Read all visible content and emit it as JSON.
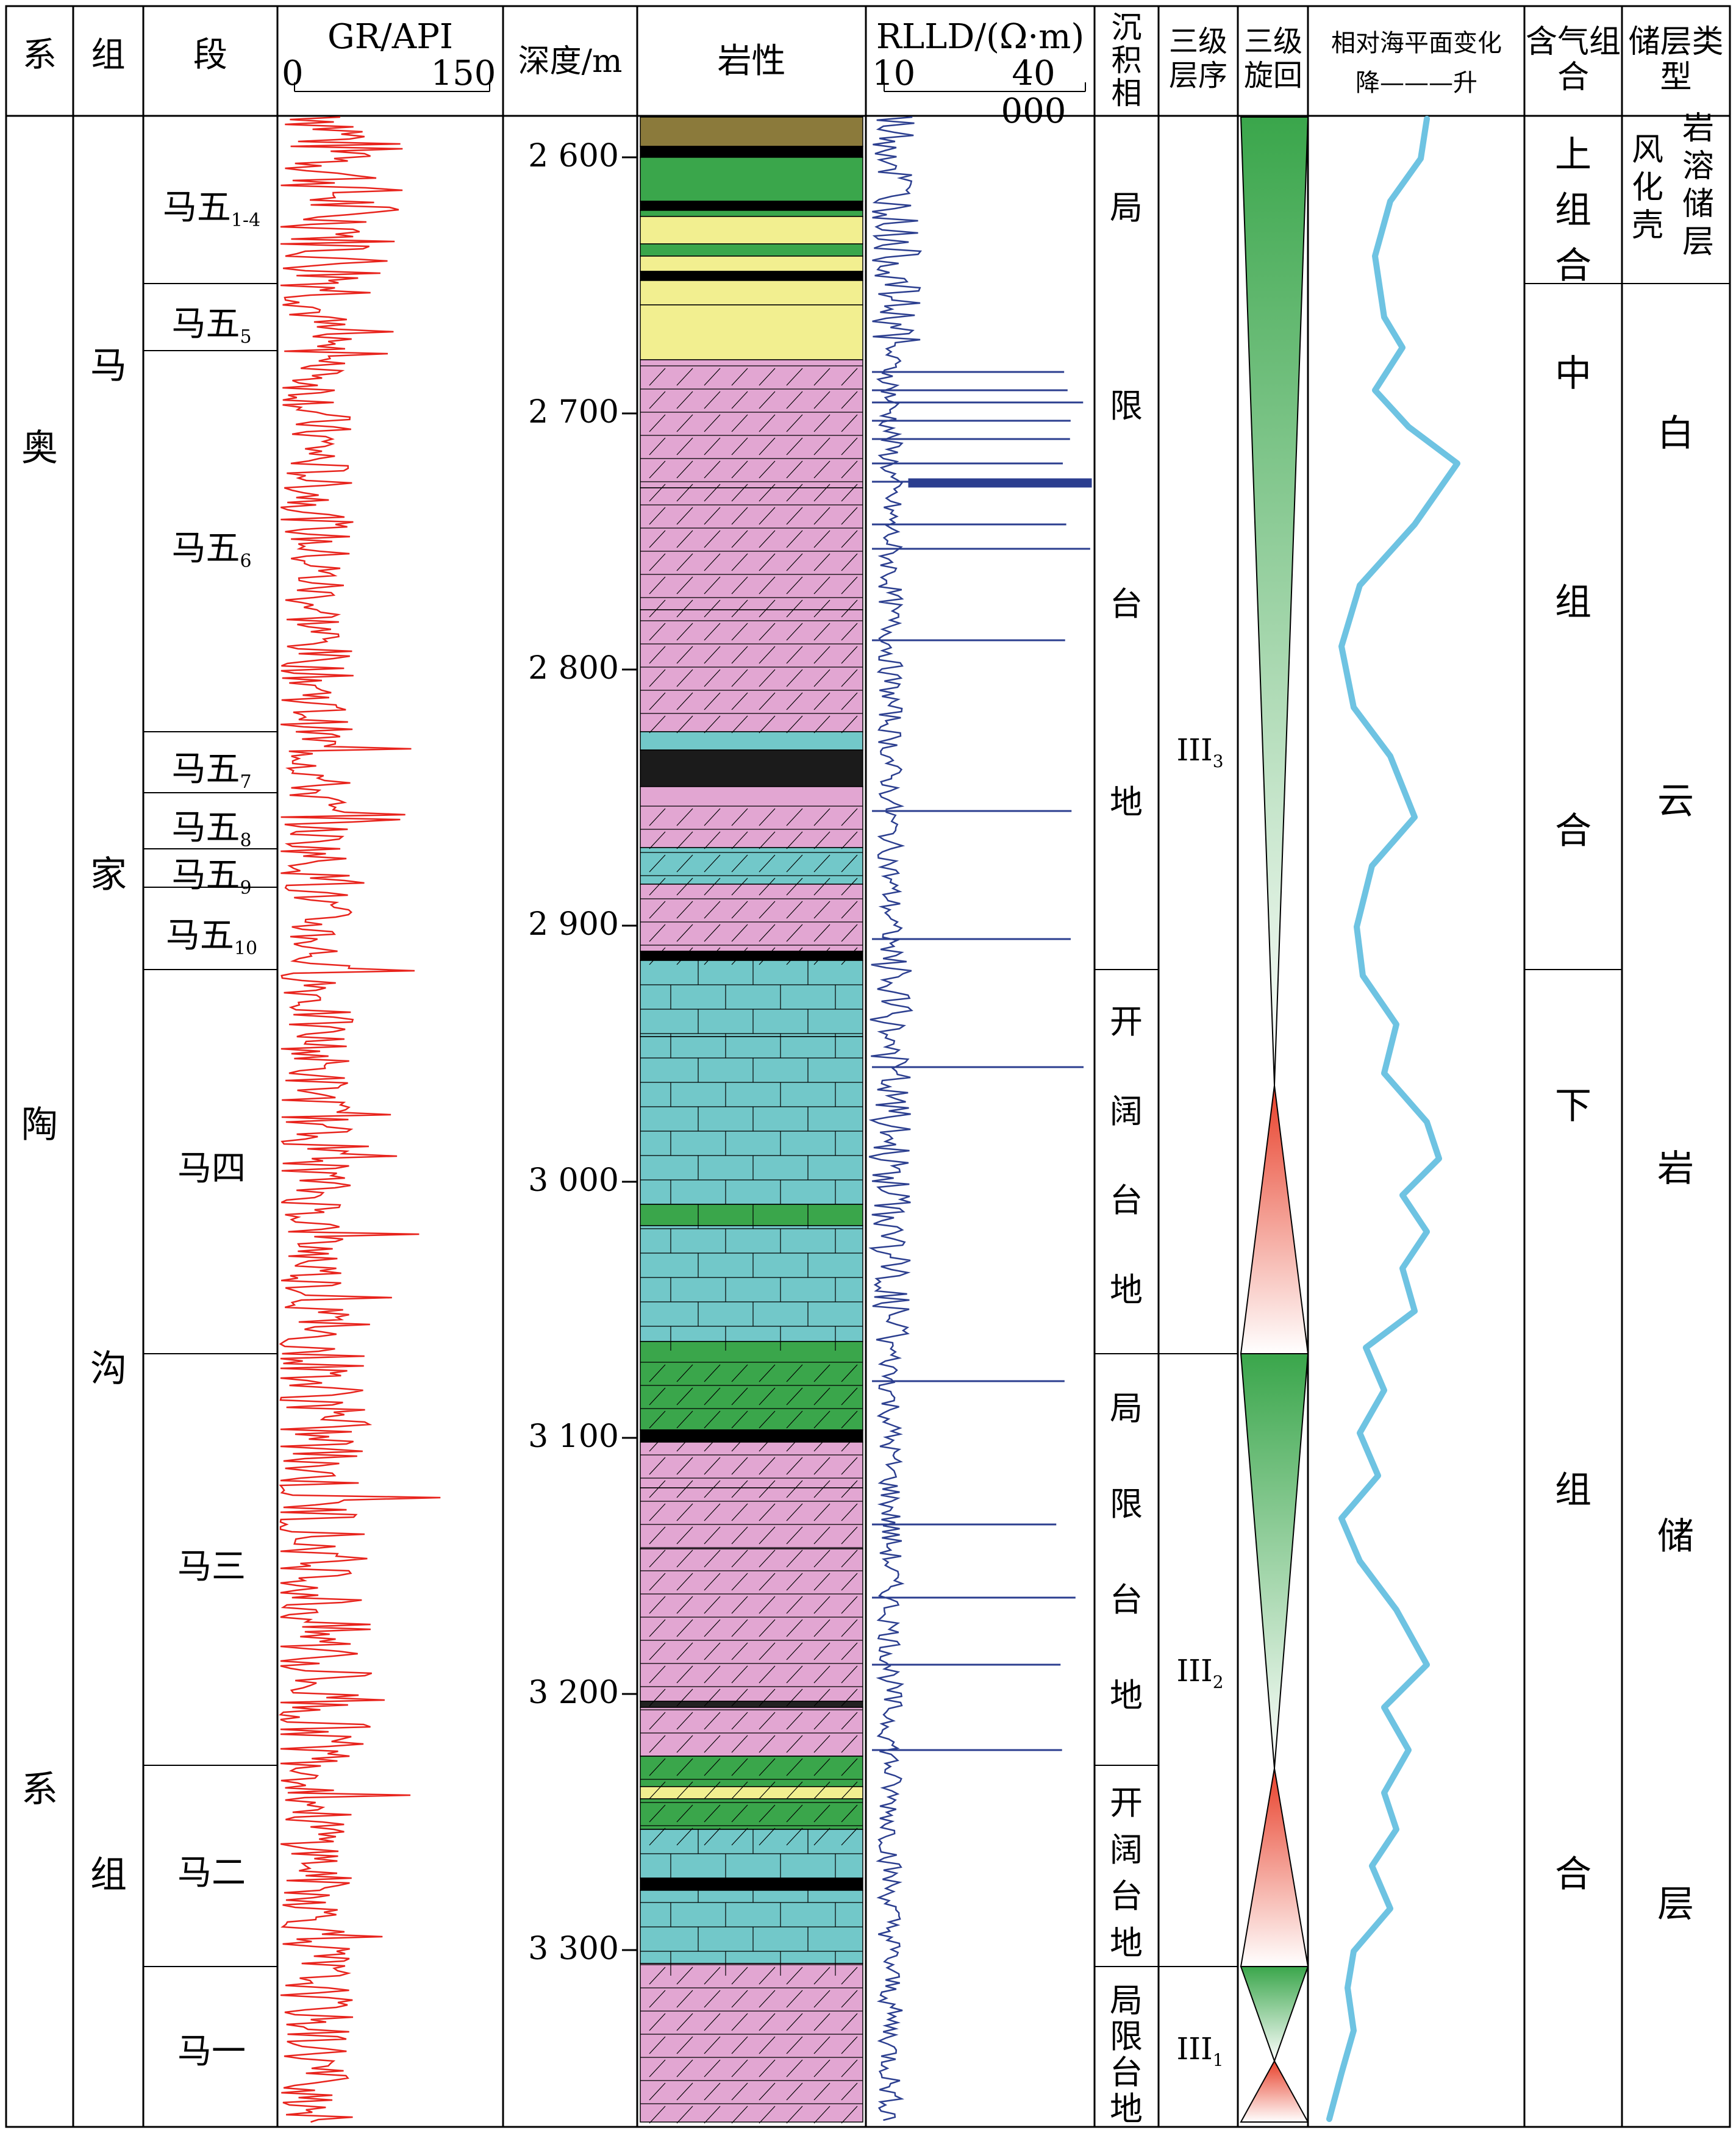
{
  "headers": {
    "system": "系",
    "formation": "组",
    "member": "段",
    "gr_title": "GR/API",
    "gr_min": "0",
    "gr_max": "150",
    "depth": "深度/m",
    "lithology": "岩性",
    "rlld_title": "RLLD/(Ω·m)",
    "rlld_min": "10",
    "rlld_max": "40 000",
    "facies": "沉积相",
    "sequence": "三级层序",
    "cycle": "三级旋回",
    "sealevel": "相对海平面变化",
    "sealevel_axis": "降———升",
    "gas_assembly": "含气组合",
    "reservoir_type": "储层类型"
  },
  "system_name": [
    "奥",
    "陶",
    "系"
  ],
  "formation_name": [
    "马",
    "家",
    "沟",
    "组"
  ],
  "members": [
    {
      "name": "马五",
      "sub": "1-4"
    },
    {
      "name": "马五",
      "sub": "5"
    },
    {
      "name": "马五",
      "sub": "6"
    },
    {
      "name": "马五",
      "sub": "7"
    },
    {
      "name": "马五",
      "sub": "8"
    },
    {
      "name": "马五",
      "sub": "9"
    },
    {
      "name": "马五",
      "sub": "10"
    },
    {
      "name": "马四",
      "sub": ""
    },
    {
      "name": "马三",
      "sub": ""
    },
    {
      "name": "马二",
      "sub": ""
    },
    {
      "name": "马一",
      "sub": ""
    }
  ],
  "depth_ticks": [
    "2 600",
    "2 700",
    "2 800",
    "2 900",
    "3 000",
    "3 100",
    "3 200",
    "3 300"
  ],
  "facies": [
    {
      "chars": [
        "局",
        "限",
        "台",
        "地"
      ]
    },
    {
      "chars": [
        "开",
        "阔",
        "台",
        "地"
      ]
    },
    {
      "chars": [
        "局",
        "限",
        "台",
        "地"
      ]
    },
    {
      "chars": [
        "开",
        "阔",
        "台",
        "地"
      ]
    },
    {
      "chars": [
        "局",
        "限",
        "台",
        "地"
      ]
    }
  ],
  "sequences": [
    {
      "name": "III",
      "sub": "3"
    },
    {
      "name": "III",
      "sub": "2"
    },
    {
      "name": "III",
      "sub": "1"
    }
  ],
  "gas_assemblies": [
    {
      "chars": [
        "上",
        "组",
        "合"
      ]
    },
    {
      "chars": [
        "中",
        "组",
        "合"
      ]
    },
    {
      "chars": [
        "下",
        "组",
        "合"
      ]
    }
  ],
  "reservoir_types": [
    {
      "chars": [
        "岩溶",
        "风化壳",
        "储层"
      ]
    },
    {
      "chars": [
        "白",
        "云",
        "岩",
        "储",
        "层"
      ]
    }
  ],
  "colors": {
    "gr_curve": "#e8231c",
    "rlld_curve": "#2b3e8f",
    "sealevel_curve": "#6ec3e2",
    "pink": "#e2a6d2",
    "cyan": "#72c8c9",
    "green": "#3aa64b",
    "yellow": "#f2ef90",
    "olive": "#8b7a3b"
  }
}
